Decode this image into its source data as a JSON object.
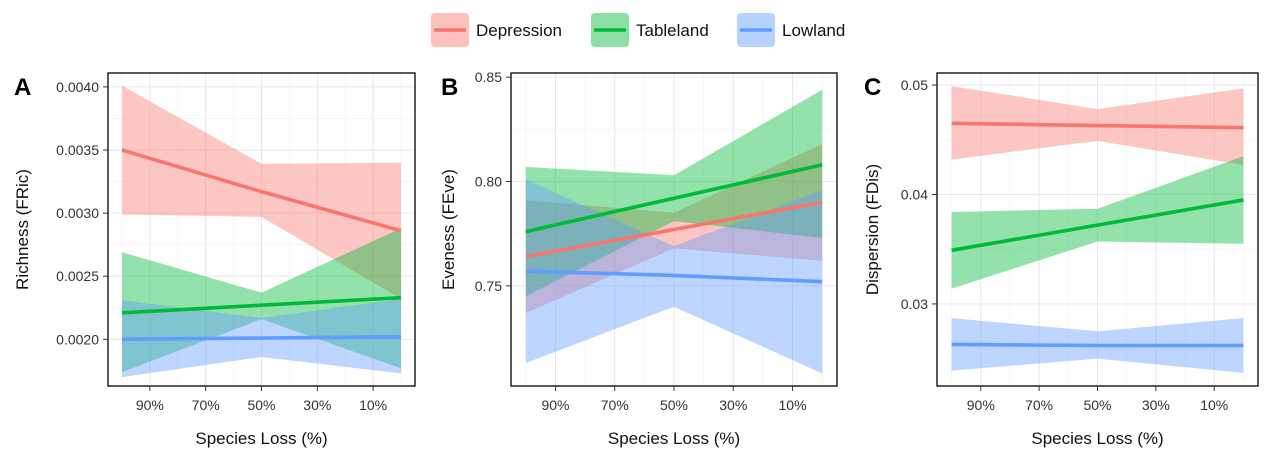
{
  "legend": [
    {
      "name": "Depression",
      "color": "#F8766D"
    },
    {
      "name": "Tableland",
      "color": "#00BA38"
    },
    {
      "name": "Lowland",
      "color": "#619CFF"
    }
  ],
  "chart_data": [
    {
      "type": "line",
      "panel": "A",
      "xlabel": "Species Loss (%)",
      "ylabel": "Richness (FRic)",
      "x_ticks": [
        "90%",
        "70%",
        "50%",
        "30%",
        "10%"
      ],
      "ylim": [
        0.00163,
        0.00411
      ],
      "y_ticks": [
        0.002,
        0.0025,
        0.003,
        0.0035,
        0.004
      ],
      "y_tick_labels": [
        "0.0020",
        "0.0025",
        "0.0030",
        "0.0035",
        "0.0040"
      ],
      "grid": true,
      "series": [
        {
          "name": "Depression",
          "color": "#F8766D",
          "x": [
            100,
            50,
            0
          ],
          "fit": [
            0.0035,
            0.00317,
            0.00286
          ],
          "lower": [
            0.00299,
            0.00297,
            0.00232
          ],
          "upper": [
            0.00401,
            0.00339,
            0.0034
          ]
        },
        {
          "name": "Tableland",
          "color": "#00BA38",
          "x": [
            100,
            50,
            0
          ],
          "fit": [
            0.00221,
            0.00227,
            0.00233
          ],
          "lower": [
            0.00174,
            0.00216,
            0.00177
          ],
          "upper": [
            0.00269,
            0.00237,
            0.00288
          ]
        },
        {
          "name": "Lowland",
          "color": "#619CFF",
          "x": [
            100,
            50,
            0
          ],
          "fit": [
            0.002,
            0.00201,
            0.00202
          ],
          "lower": [
            0.0017,
            0.00186,
            0.00173
          ],
          "upper": [
            0.00231,
            0.00217,
            0.00232
          ]
        }
      ]
    },
    {
      "type": "line",
      "panel": "B",
      "xlabel": "Species Loss (%)",
      "ylabel": "Eveness (FEve)",
      "x_ticks": [
        "90%",
        "70%",
        "50%",
        "30%",
        "10%"
      ],
      "ylim": [
        0.702,
        0.852
      ],
      "y_ticks": [
        0.75,
        0.8,
        0.85
      ],
      "y_tick_labels": [
        "0.75",
        "0.80",
        "0.85"
      ],
      "grid": true,
      "series": [
        {
          "name": "Depression",
          "color": "#F8766D",
          "x": [
            100,
            50,
            0
          ],
          "fit": [
            0.764,
            0.777,
            0.79
          ],
          "lower": [
            0.737,
            0.768,
            0.762
          ],
          "upper": [
            0.791,
            0.785,
            0.818
          ]
        },
        {
          "name": "Tableland",
          "color": "#00BA38",
          "x": [
            100,
            50,
            0
          ],
          "fit": [
            0.776,
            0.792,
            0.808
          ],
          "lower": [
            0.745,
            0.781,
            0.773
          ],
          "upper": [
            0.807,
            0.803,
            0.844
          ]
        },
        {
          "name": "Lowland",
          "color": "#619CFF",
          "x": [
            100,
            50,
            0
          ],
          "fit": [
            0.757,
            0.755,
            0.752
          ],
          "lower": [
            0.713,
            0.74,
            0.708
          ],
          "upper": [
            0.801,
            0.769,
            0.796
          ]
        }
      ]
    },
    {
      "type": "line",
      "panel": "C",
      "xlabel": "Species Loss (%)",
      "ylabel": "Dispersion (FDis)",
      "x_ticks": [
        "90%",
        "70%",
        "50%",
        "30%",
        "10%"
      ],
      "ylim": [
        0.0225,
        0.0511
      ],
      "y_ticks": [
        0.03,
        0.04,
        0.05
      ],
      "y_tick_labels": [
        "0.03",
        "0.04",
        "0.05"
      ],
      "grid": true,
      "series": [
        {
          "name": "Depression",
          "color": "#F8766D",
          "x": [
            100,
            50,
            0
          ],
          "fit": [
            0.0465,
            0.0463,
            0.0461
          ],
          "lower": [
            0.0432,
            0.0449,
            0.0427
          ],
          "upper": [
            0.0499,
            0.0478,
            0.0497
          ]
        },
        {
          "name": "Tableland",
          "color": "#00BA38",
          "x": [
            100,
            50,
            0
          ],
          "fit": [
            0.0349,
            0.0372,
            0.0395
          ],
          "lower": [
            0.0314,
            0.0357,
            0.0355
          ],
          "upper": [
            0.0384,
            0.0387,
            0.0435
          ]
        },
        {
          "name": "Lowland",
          "color": "#619CFF",
          "x": [
            100,
            50,
            0
          ],
          "fit": [
            0.0263,
            0.0262,
            0.0262
          ],
          "lower": [
            0.0239,
            0.025,
            0.0237
          ],
          "upper": [
            0.0287,
            0.0275,
            0.0287
          ]
        }
      ]
    }
  ]
}
